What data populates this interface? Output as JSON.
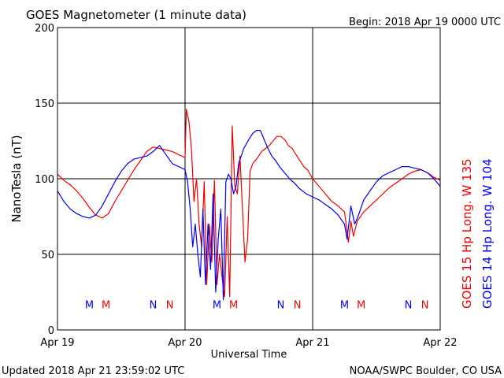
{
  "header": {
    "title": "GOES Magnetometer (1 minute data)",
    "begin": "Begin:  2018 Apr 19 0000 UTC"
  },
  "footer": {
    "updated": "Updated 2018 Apr 21 23:59:02 UTC",
    "credit": "NOAA/SWPC Boulder, CO USA"
  },
  "colors": {
    "goes15": "#ee0000",
    "goes14": "#0000ee",
    "grid": "#000000"
  },
  "chart_data": {
    "type": "line",
    "title": "GOES Magnetometer (1 minute data)",
    "xlabel": "Universal Time",
    "ylabel": "NanoTesla (nT)",
    "xlim": [
      0,
      3
    ],
    "ylim": [
      0,
      200
    ],
    "grid": true,
    "x_ticks": [
      {
        "x": 0,
        "label": "Apr 19"
      },
      {
        "x": 1,
        "label": "Apr 20"
      },
      {
        "x": 2,
        "label": "Apr 21"
      },
      {
        "x": 3,
        "label": "Apr 22"
      }
    ],
    "y_ticks": [
      0,
      50,
      100,
      150,
      200
    ],
    "legend_position": "right, vertical",
    "series": [
      {
        "name": "GOES 15 Hp  Long. W 135",
        "color": "#ee0000",
        "x": [
          0,
          0.05,
          0.1,
          0.15,
          0.2,
          0.25,
          0.3,
          0.35,
          0.4,
          0.45,
          0.5,
          0.55,
          0.6,
          0.65,
          0.7,
          0.75,
          0.8,
          0.85,
          0.9,
          0.95,
          1.0,
          1.01,
          1.03,
          1.05,
          1.07,
          1.09,
          1.11,
          1.13,
          1.15,
          1.17,
          1.19,
          1.21,
          1.23,
          1.25,
          1.27,
          1.29,
          1.31,
          1.33,
          1.35,
          1.37,
          1.39,
          1.41,
          1.43,
          1.45,
          1.47,
          1.49,
          1.51,
          1.53,
          1.55,
          1.57,
          1.6,
          1.63,
          1.66,
          1.69,
          1.72,
          1.75,
          1.78,
          1.81,
          1.84,
          1.87,
          1.9,
          1.93,
          1.96,
          2.0,
          2.05,
          2.1,
          2.15,
          2.2,
          2.25,
          2.28,
          2.3,
          2.32,
          2.35,
          2.4,
          2.45,
          2.5,
          2.55,
          2.6,
          2.65,
          2.7,
          2.75,
          2.8,
          2.85,
          2.9,
          2.95,
          3.0
        ],
        "values": [
          103,
          99,
          96,
          92,
          87,
          81,
          76,
          74,
          77,
          85,
          92,
          99,
          106,
          112,
          118,
          121,
          120,
          119,
          118,
          116,
          114,
          146,
          138,
          120,
          85,
          100,
          70,
          55,
          98,
          30,
          70,
          45,
          99,
          30,
          50,
          35,
          22,
          75,
          22,
          135,
          95,
          90,
          115,
          80,
          45,
          60,
          105,
          110,
          112,
          114,
          118,
          120,
          122,
          125,
          128,
          128,
          126,
          122,
          120,
          116,
          112,
          108,
          106,
          100,
          95,
          90,
          85,
          82,
          78,
          58,
          72,
          62,
          72,
          78,
          82,
          86,
          90,
          94,
          97,
          100,
          103,
          105,
          106,
          104,
          101,
          99
        ]
      },
      {
        "name": "GOES 14 Hp  Long. W 104",
        "color": "#0000ee",
        "x": [
          0,
          0.05,
          0.1,
          0.15,
          0.2,
          0.25,
          0.3,
          0.35,
          0.4,
          0.45,
          0.5,
          0.55,
          0.6,
          0.65,
          0.7,
          0.75,
          0.8,
          0.85,
          0.9,
          0.95,
          1.0,
          1.02,
          1.04,
          1.06,
          1.08,
          1.1,
          1.12,
          1.14,
          1.16,
          1.18,
          1.2,
          1.22,
          1.24,
          1.26,
          1.28,
          1.3,
          1.32,
          1.34,
          1.36,
          1.38,
          1.4,
          1.42,
          1.44,
          1.46,
          1.48,
          1.5,
          1.53,
          1.56,
          1.59,
          1.62,
          1.65,
          1.68,
          1.71,
          1.74,
          1.77,
          1.8,
          1.83,
          1.86,
          1.89,
          1.92,
          1.95,
          2.0,
          2.05,
          2.1,
          2.15,
          2.2,
          2.25,
          2.27,
          2.3,
          2.33,
          2.36,
          2.4,
          2.45,
          2.5,
          2.55,
          2.6,
          2.65,
          2.7,
          2.75,
          2.8,
          2.85,
          2.9,
          2.95,
          3.0
        ],
        "values": [
          92,
          85,
          80,
          77,
          75,
          74,
          76,
          82,
          90,
          98,
          105,
          110,
          113,
          114,
          115,
          118,
          122,
          116,
          110,
          108,
          106,
          98,
          80,
          55,
          70,
          50,
          35,
          80,
          30,
          70,
          40,
          90,
          25,
          60,
          80,
          20,
          98,
          103,
          100,
          90,
          95,
          110,
          115,
          120,
          123,
          126,
          130,
          132,
          132,
          126,
          120,
          115,
          112,
          108,
          105,
          102,
          99,
          97,
          94,
          92,
          90,
          88,
          86,
          83,
          80,
          76,
          70,
          60,
          82,
          70,
          76,
          86,
          92,
          98,
          102,
          104,
          106,
          108,
          108,
          107,
          106,
          104,
          100,
          95
        ]
      }
    ],
    "annotations": [
      {
        "text": "M",
        "x": 0.25,
        "color": "#0000ee"
      },
      {
        "text": "M",
        "x": 0.38,
        "color": "#ee0000"
      },
      {
        "text": "N",
        "x": 0.75,
        "color": "#0000ee"
      },
      {
        "text": "N",
        "x": 0.88,
        "color": "#ee0000"
      },
      {
        "text": "M",
        "x": 1.25,
        "color": "#0000ee"
      },
      {
        "text": "M",
        "x": 1.38,
        "color": "#ee0000"
      },
      {
        "text": "N",
        "x": 1.75,
        "color": "#0000ee"
      },
      {
        "text": "N",
        "x": 1.88,
        "color": "#ee0000"
      },
      {
        "text": "M",
        "x": 2.25,
        "color": "#0000ee"
      },
      {
        "text": "M",
        "x": 2.38,
        "color": "#ee0000"
      },
      {
        "text": "N",
        "x": 2.75,
        "color": "#0000ee"
      },
      {
        "text": "N",
        "x": 2.88,
        "color": "#ee0000"
      }
    ],
    "annotation_y": 17
  }
}
